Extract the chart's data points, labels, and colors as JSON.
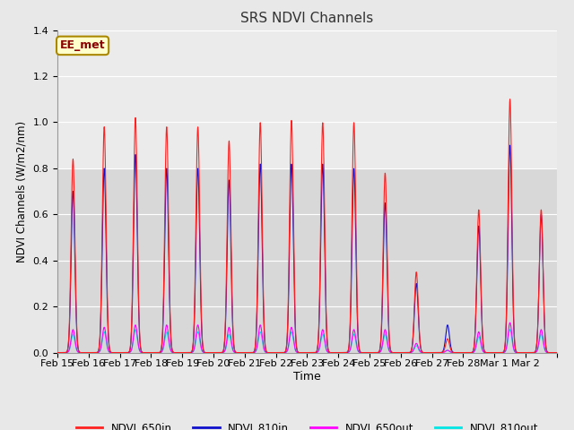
{
  "title": "SRS NDVI Channels",
  "xlabel": "Time",
  "ylabel": "NDVI Channels (W/m2/nm)",
  "annotation": "EE_met",
  "ylim": [
    0,
    1.4
  ],
  "fig_bg": "#e8e8e8",
  "plot_bg_lower": "#d8d8d8",
  "plot_bg_upper": "#e8e8e8",
  "upper_band_threshold": 0.8,
  "colors": {
    "NDVI_650in": "#ff2020",
    "NDVI_810in": "#1010cc",
    "NDVI_650out": "#ff00ff",
    "NDVI_810out": "#00e5e5"
  },
  "days": [
    "Feb 15",
    "Feb 16",
    "Feb 17",
    "Feb 18",
    "Feb 19",
    "Feb 20",
    "Feb 21",
    "Feb 22",
    "Feb 23",
    "Feb 24",
    "Feb 25",
    "Feb 26",
    "Feb 27",
    "Feb 28",
    "Mar 1",
    "Mar 2"
  ],
  "peaks_650in": [
    0.84,
    0.98,
    1.02,
    0.98,
    0.98,
    0.92,
    1.0,
    1.01,
    1.0,
    1.0,
    0.78,
    0.35,
    0.06,
    0.62,
    1.1,
    0.62
  ],
  "peaks_810in": [
    0.7,
    0.8,
    0.86,
    0.8,
    0.8,
    0.75,
    0.82,
    0.82,
    0.82,
    0.8,
    0.65,
    0.3,
    0.12,
    0.55,
    0.9,
    0.6
  ],
  "peaks_650out": [
    0.1,
    0.11,
    0.12,
    0.12,
    0.12,
    0.11,
    0.12,
    0.11,
    0.1,
    0.1,
    0.1,
    0.04,
    0.01,
    0.09,
    0.13,
    0.1
  ],
  "peaks_810out": [
    0.08,
    0.09,
    0.1,
    0.09,
    0.09,
    0.08,
    0.09,
    0.09,
    0.08,
    0.08,
    0.08,
    0.03,
    0.01,
    0.07,
    0.1,
    0.08
  ],
  "sigma": 0.06,
  "points_per_day": 120,
  "linewidth": 0.8
}
